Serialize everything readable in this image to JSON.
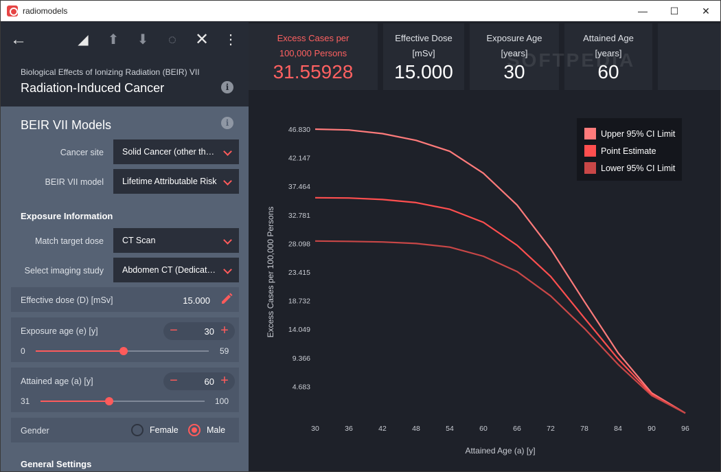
{
  "window": {
    "title": "radiomodels",
    "controls": {
      "minimize": "—",
      "maximize": "☐",
      "close": "✕"
    }
  },
  "toolbar": {
    "back": "←",
    "erase": "◢",
    "upload": "⬆",
    "download": "⬇",
    "refresh": "◌",
    "close": "✕",
    "menu": "⋮"
  },
  "header": {
    "subtitle": "Biological Effects of Ionizing Radiation (BEIR) VII",
    "title": "Radiation-Induced Cancer",
    "info": "i"
  },
  "models": {
    "title": "BEIR VII Models",
    "info": "i",
    "cancer_site": {
      "label": "Cancer site",
      "value": "Solid Cancer (other than leukemia)"
    },
    "beir_model": {
      "label": "BEIR VII model",
      "value": "Lifetime Attributable Risk"
    }
  },
  "exposure": {
    "title": "Exposure Information",
    "match_target": {
      "label": "Match target dose",
      "value": "CT Scan"
    },
    "imaging_study": {
      "label": "Select imaging study",
      "value": "Abdomen CT (Dedicated)"
    },
    "effective_dose": {
      "label": "Effective dose (D) [mSv]",
      "value": "15.000"
    },
    "exposure_age": {
      "label": "Exposure age (e) [y]",
      "value": "30",
      "min": "0",
      "max": "59",
      "fraction": 0.508
    },
    "attained_age": {
      "label": "Attained age (a) [y]",
      "value": "60",
      "min": "31",
      "max": "100",
      "fraction": 0.42
    },
    "gender": {
      "label": "Gender",
      "female": "Female",
      "male": "Male",
      "selected": "Male"
    },
    "stepper_minus": "−",
    "stepper_plus": "+"
  },
  "general": {
    "title": "General Settings"
  },
  "kpis": {
    "excess": {
      "label1": "Excess Cases per",
      "label2": "100,000 Persons",
      "value": "31.55928"
    },
    "dose": {
      "label1": "Effective Dose",
      "label2": "[mSv]",
      "value": "15.000"
    },
    "exposure_age": {
      "label1": "Exposure Age",
      "label2": "[years]",
      "value": "30"
    },
    "attained_age": {
      "label1": "Attained Age",
      "label2": "[years]",
      "value": "60"
    }
  },
  "watermark": "SOFTPEDIA",
  "colors": {
    "accent": "#ff5b5b",
    "upper": "#ff7b7b",
    "point": "#ff4f4f",
    "lower": "#c94747"
  },
  "chart_data": {
    "type": "line",
    "xlabel": "Attained Age (a) [y]",
    "ylabel": "Excess Cases per 100,000 Persons",
    "x": [
      30,
      36,
      42,
      48,
      54,
      60,
      66,
      72,
      78,
      84,
      90,
      96
    ],
    "xticks": [
      "30",
      "36",
      "42",
      "48",
      "54",
      "60",
      "66",
      "72",
      "78",
      "84",
      "90",
      "96"
    ],
    "yticks": [
      "4.683",
      "9.366",
      "14.049",
      "18.732",
      "23.415",
      "28.098",
      "32.781",
      "37.464",
      "42.147",
      "46.830"
    ],
    "ytick_values": [
      4.683,
      9.366,
      14.049,
      18.732,
      23.415,
      28.098,
      32.781,
      37.464,
      42.147,
      46.83
    ],
    "xlim": [
      30,
      96
    ],
    "ylim": [
      0,
      46.83
    ],
    "grid": false,
    "legend_position": "top-right",
    "series": [
      {
        "name": "Upper 95% CI Limit",
        "color": "#ff7b7b",
        "values": [
          46.83,
          46.7,
          46.1,
          45.0,
          43.2,
          39.6,
          34.4,
          27.2,
          18.6,
          10.2,
          3.6,
          0.3
        ]
      },
      {
        "name": "Point Estimate",
        "color": "#ff4f4f",
        "values": [
          35.6,
          35.55,
          35.3,
          34.8,
          33.7,
          31.56,
          27.8,
          22.7,
          15.9,
          9.2,
          3.4,
          0.3
        ]
      },
      {
        "name": "Lower 95% CI Limit",
        "color": "#c94747",
        "values": [
          28.5,
          28.45,
          28.35,
          28.1,
          27.5,
          26.0,
          23.5,
          19.5,
          14.2,
          8.3,
          3.2,
          0.3
        ]
      }
    ]
  }
}
